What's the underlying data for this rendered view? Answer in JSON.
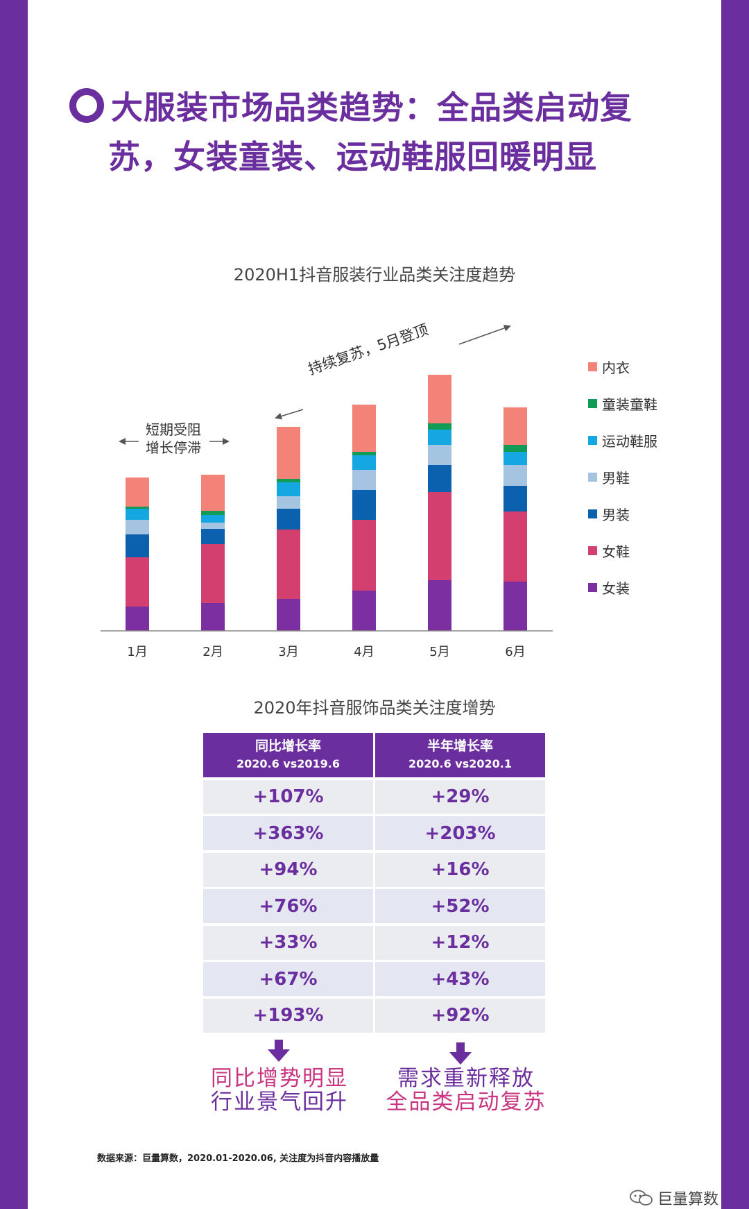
{
  "page": {
    "title_line1": "大服装市场品类趋势：全品类启动复",
    "title_line2": "苏，女装童装、运动鞋服回暖明显"
  },
  "colors": {
    "accent": "#6b2e9e",
    "conclusion_pink": "#c8347f"
  },
  "chart_data": {
    "type": "bar",
    "stacked": true,
    "title": "2020H1抖音服装行业品类关注度趋势",
    "categories": [
      "1月",
      "2月",
      "3月",
      "4月",
      "5月",
      "6月"
    ],
    "series": [
      {
        "name": "女装",
        "color": "#7b2fa0",
        "values": [
          35,
          40,
          46,
          58,
          73,
          71
        ]
      },
      {
        "name": "女鞋",
        "color": "#d3406f",
        "values": [
          71,
          85,
          100,
          102,
          127,
          101
        ]
      },
      {
        "name": "男装",
        "color": "#0c61ae",
        "values": [
          33,
          22,
          30,
          43,
          39,
          37
        ]
      },
      {
        "name": "男鞋",
        "color": "#a5c4e1",
        "values": [
          21,
          9,
          18,
          29,
          29,
          30
        ]
      },
      {
        "name": "运动鞋服",
        "color": "#15a7e2",
        "values": [
          16,
          11,
          20,
          21,
          22,
          19
        ]
      },
      {
        "name": "童装童鞋",
        "color": "#119b54",
        "values": [
          3,
          6,
          5,
          5,
          9,
          10
        ]
      },
      {
        "name": "内衣",
        "color": "#f38279",
        "values": [
          42,
          52,
          75,
          68,
          70,
          54
        ]
      }
    ],
    "xlabel": "",
    "ylabel": "",
    "ylim": [
      0,
      380
    ],
    "grid": false,
    "legend_position": "right",
    "annotations": {
      "left_line1": "短期受阻",
      "left_line2": "增长停滞",
      "right": "持续复苏，5月登顶"
    }
  },
  "table": {
    "title": "2020年抖音服饰品类关注度增势",
    "headers": [
      {
        "line1": "同比增长率",
        "line2": "2020.6 vs2019.6"
      },
      {
        "line1": "半年增长率",
        "line2": "2020.6 vs2020.1"
      }
    ],
    "rows": [
      [
        "+107%",
        "+29%"
      ],
      [
        "+363%",
        "+203%"
      ],
      [
        "+94%",
        "+16%"
      ],
      [
        "+76%",
        "+52%"
      ],
      [
        "+33%",
        "+12%"
      ],
      [
        "+67%",
        "+43%"
      ],
      [
        "+193%",
        "+92%"
      ]
    ]
  },
  "conclusions": {
    "left_line1": "同比增势明显",
    "left_line2": "行业景气回升",
    "right_line1": "需求重新释放",
    "right_line2": "全品类启动复苏"
  },
  "footer": {
    "source": "数据来源：巨量算数，2020.01-2020.06, 关注度为抖音内容播放量",
    "brand": "巨量算数",
    "brand_icon": "wechat-icon"
  }
}
